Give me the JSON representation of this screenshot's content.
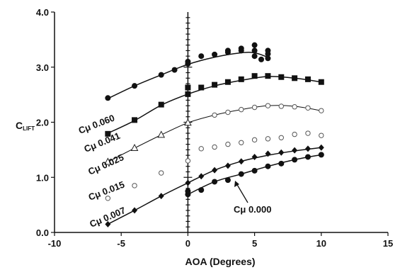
{
  "chart_data": {
    "type": "scatter",
    "xlabel": "AOA (Degrees)",
    "ylabel_main": "C",
    "ylabel_sub": "LIFT",
    "xlim": [
      -10,
      15
    ],
    "ylim": [
      0.0,
      4.0
    ],
    "xticks": [
      "-10",
      "-5",
      "0",
      "5",
      "10",
      "15"
    ],
    "yticks": [
      "0.0",
      "1.0",
      "2.0",
      "3.0",
      "4.0"
    ],
    "grid": false,
    "series": [
      {
        "name": "Cμ 0.060",
        "marker": "circle",
        "fit": [
          [
            -6,
            2.43
          ],
          [
            -4,
            2.66
          ],
          [
            -2,
            2.86
          ],
          [
            0,
            3.05
          ],
          [
            2,
            3.18
          ],
          [
            4,
            3.26
          ],
          [
            5,
            3.26
          ],
          [
            6,
            3.18
          ]
        ],
        "points": [
          [
            -6,
            2.44
          ],
          [
            -4,
            2.66
          ],
          [
            -2,
            2.86
          ],
          [
            -1,
            2.95
          ],
          [
            0,
            3.06
          ],
          [
            0,
            3.1
          ],
          [
            1,
            3.2
          ],
          [
            2,
            3.23
          ],
          [
            3,
            3.27
          ],
          [
            3,
            3.3
          ],
          [
            4,
            3.3
          ],
          [
            4,
            3.34
          ],
          [
            5,
            3.4
          ],
          [
            5,
            3.3
          ],
          [
            5,
            3.2
          ],
          [
            5.5,
            3.14
          ],
          [
            6,
            3.3
          ],
          [
            6,
            3.24
          ],
          [
            6,
            3.16
          ]
        ]
      },
      {
        "name": "Cμ 0.041",
        "marker": "square",
        "fit": [
          [
            -6,
            1.8
          ],
          [
            -4,
            2.03
          ],
          [
            -2,
            2.31
          ],
          [
            0,
            2.51
          ],
          [
            2,
            2.66
          ],
          [
            4,
            2.76
          ],
          [
            6,
            2.83
          ],
          [
            8,
            2.8
          ],
          [
            10,
            2.73
          ]
        ],
        "points": [
          [
            -6,
            1.79
          ],
          [
            -4,
            2.04
          ],
          [
            -2,
            2.32
          ],
          [
            0,
            2.51
          ],
          [
            0,
            2.63
          ],
          [
            1,
            2.63
          ],
          [
            2,
            2.68
          ],
          [
            3,
            2.73
          ],
          [
            4,
            2.78
          ],
          [
            5,
            2.84
          ],
          [
            6,
            2.84
          ],
          [
            7,
            2.82
          ],
          [
            8,
            2.8
          ],
          [
            9,
            2.78
          ],
          [
            10,
            2.73
          ]
        ]
      },
      {
        "name": "Cμ 0.025",
        "marker": "triangle",
        "fit": [
          [
            -6,
            1.28
          ],
          [
            -4,
            1.53
          ],
          [
            -2,
            1.77
          ],
          [
            0,
            1.99
          ],
          [
            2,
            2.13
          ],
          [
            4,
            2.23
          ],
          [
            6,
            2.3
          ],
          [
            8,
            2.29
          ],
          [
            10,
            2.21
          ]
        ],
        "points": [
          [
            -6,
            1.28
          ],
          [
            -4,
            1.53
          ],
          [
            -2,
            1.77
          ],
          [
            0,
            1.99
          ]
        ]
      },
      {
        "name": "Cμ 0.025 (open)",
        "marker": "open-circle",
        "fit": [],
        "points": [
          [
            2,
            2.13
          ],
          [
            3,
            2.18
          ],
          [
            4,
            2.23
          ],
          [
            5,
            2.27
          ],
          [
            6,
            2.3
          ],
          [
            7,
            2.29
          ],
          [
            8,
            2.28
          ],
          [
            9,
            2.26
          ],
          [
            10,
            2.21
          ]
        ]
      },
      {
        "name": "Cμ 0.015",
        "marker": "open-circle",
        "fit": [],
        "points": [
          [
            -6,
            0.62
          ],
          [
            -4,
            0.85
          ],
          [
            -2,
            1.08
          ],
          [
            0,
            1.3
          ],
          [
            1,
            1.52
          ],
          [
            2,
            1.55
          ],
          [
            3,
            1.6
          ],
          [
            4,
            1.63
          ],
          [
            5,
            1.68
          ],
          [
            6,
            1.7
          ],
          [
            7,
            1.72
          ],
          [
            8,
            1.78
          ],
          [
            9,
            1.8
          ],
          [
            10,
            1.76
          ]
        ]
      },
      {
        "name": "Cμ 0.007",
        "marker": "diamond",
        "fit": [
          [
            -6,
            0.15
          ],
          [
            -4,
            0.4
          ],
          [
            -2,
            0.66
          ],
          [
            0,
            0.9
          ],
          [
            2,
            1.13
          ],
          [
            4,
            1.29
          ],
          [
            6,
            1.4
          ],
          [
            8,
            1.48
          ],
          [
            10,
            1.54
          ]
        ],
        "points": [
          [
            -6,
            0.15
          ],
          [
            -4,
            0.4
          ],
          [
            -2,
            0.66
          ],
          [
            0,
            0.9
          ],
          [
            1,
            1.02
          ],
          [
            2,
            1.13
          ],
          [
            3,
            1.21
          ],
          [
            4,
            1.29
          ],
          [
            5,
            1.37
          ],
          [
            6,
            1.43
          ],
          [
            7,
            1.45
          ],
          [
            8,
            1.49
          ],
          [
            9,
            1.52
          ],
          [
            10,
            1.54
          ]
        ]
      },
      {
        "name": "Cμ 0.000",
        "marker": "circle",
        "fit": [
          [
            0,
            0.69
          ],
          [
            2,
            0.92
          ],
          [
            4,
            1.06
          ],
          [
            6,
            1.2
          ],
          [
            8,
            1.32
          ],
          [
            10,
            1.41
          ]
        ],
        "points": [
          [
            0,
            0.69
          ],
          [
            0,
            0.75
          ],
          [
            1,
            0.77
          ],
          [
            2,
            0.92
          ],
          [
            3,
            0.95
          ],
          [
            4,
            1.06
          ],
          [
            5,
            1.12
          ],
          [
            6,
            1.2
          ],
          [
            7,
            1.25
          ],
          [
            8,
            1.32
          ],
          [
            9,
            1.37
          ],
          [
            10,
            1.41
          ]
        ]
      }
    ],
    "labels": [
      {
        "text": "Cμ 0.060",
        "series": 0
      },
      {
        "text": "Cμ 0.041",
        "series": 1
      },
      {
        "text": "Cμ 0.025",
        "series": 2
      },
      {
        "text": "Cμ 0.015",
        "series": 4
      },
      {
        "text": "Cμ 0.007",
        "series": 5
      },
      {
        "text": "Cμ 0.000",
        "series": 6
      }
    ]
  }
}
